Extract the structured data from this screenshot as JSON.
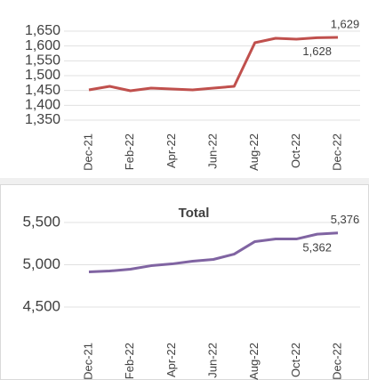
{
  "chart_data": [
    {
      "type": "line",
      "categories": [
        "Dec-21",
        null,
        "Feb-22",
        null,
        "Apr-22",
        null,
        "Jun-22",
        null,
        "Aug-22",
        null,
        "Oct-22",
        null,
        "Dec-22"
      ],
      "series": [
        {
          "color": "#c0504d",
          "values": [
            1452,
            1464,
            1449,
            1458,
            1455,
            1452,
            1458,
            1464,
            1611,
            1626,
            1623,
            1628,
            1629
          ],
          "value_labels": [
            null,
            null,
            null,
            null,
            null,
            null,
            null,
            null,
            null,
            null,
            null,
            "1,628",
            "1,629"
          ]
        }
      ],
      "ylim": [
        1350,
        1650
      ],
      "yticks": [
        {
          "value": 1350,
          "label": "1,350"
        },
        {
          "value": 1400,
          "label": "1,400"
        },
        {
          "value": 1450,
          "label": "1,450"
        },
        {
          "value": 1500,
          "label": "1,500"
        },
        {
          "value": 1550,
          "label": "1,550"
        },
        {
          "value": 1600,
          "label": "1,600"
        },
        {
          "value": 1650,
          "label": "1,650"
        }
      ],
      "grid": true
    },
    {
      "type": "line",
      "title": "Total",
      "categories": [
        "Dec-21",
        null,
        "Feb-22",
        null,
        "Apr-22",
        null,
        "Jun-22",
        null,
        "Aug-22",
        null,
        "Oct-22",
        null,
        "Dec-22"
      ],
      "series": [
        {
          "color": "#8064a2",
          "values": [
            4916,
            4926,
            4947,
            4989,
            5010,
            5042,
            5063,
            5126,
            5274,
            5305,
            5305,
            5362,
            5376
          ],
          "value_labels": [
            null,
            null,
            null,
            null,
            null,
            null,
            null,
            null,
            null,
            null,
            null,
            "5,362",
            "5,376"
          ]
        }
      ],
      "ylim": [
        4500,
        5500
      ],
      "yticks": [
        {
          "value": 4500,
          "label": "4,500"
        },
        {
          "value": 5000,
          "label": "5,000"
        },
        {
          "value": 5500,
          "label": "5,500"
        }
      ],
      "grid": true
    }
  ]
}
